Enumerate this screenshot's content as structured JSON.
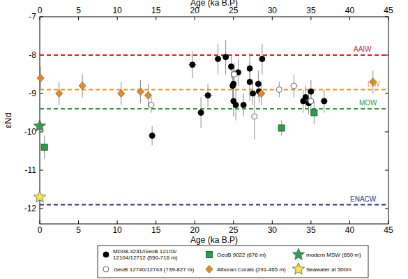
{
  "chart_data": {
    "type": "scatter",
    "xlabel": "Age (ka B.P)",
    "ylabel": "εNd",
    "xlim": [
      0,
      45
    ],
    "ylim": [
      -12.4,
      -7
    ],
    "xticks": [
      0,
      5,
      10,
      15,
      20,
      25,
      30,
      35,
      40,
      45
    ],
    "yticks": [
      -7,
      -8,
      -9,
      -10,
      -11,
      -12
    ],
    "grid": false,
    "legend": "bottom",
    "annotations": [
      {
        "text": "AAIW",
        "y": -8,
        "color": "#c0282d"
      },
      {
        "text": "LIW",
        "y": -8.9,
        "color": "#e6961e"
      },
      {
        "text": "MOW",
        "y": -9.4,
        "color": "#2e9a3a"
      },
      {
        "text": "ENACW",
        "y": -11.9,
        "color": "#2a2f8f"
      }
    ],
    "series": [
      {
        "name": "MD08-3231/GeoB 12103/12104/12712 (550-716 m)",
        "color": "#000000",
        "marker": "circle",
        "x": [
          14.5,
          19.7,
          20.8,
          21.7,
          23.0,
          24.0,
          24.7,
          24.9,
          25.0,
          25.0,
          25.3,
          25.6,
          26.3,
          27.1,
          27.1,
          27.5,
          28.2,
          28.3,
          28.7,
          34.0,
          34.3,
          34.7,
          35.0,
          36.7
        ],
        "values": [
          -10.1,
          -8.25,
          -9.5,
          -9.05,
          -8.1,
          -8.05,
          -8.3,
          -8.8,
          -8.75,
          -9.2,
          -9.3,
          -8.45,
          -9.3,
          -8.35,
          -8.7,
          -9.0,
          -8.75,
          -8.95,
          -8.1,
          -9.2,
          -9.1,
          -9.25,
          -8.95,
          -9.2
        ],
        "errors": [
          0.25,
          0.35,
          0.4,
          0.3,
          0.4,
          0.45,
          0.3,
          0.4,
          0.4,
          0.4,
          0.4,
          0.35,
          0.3,
          0.4,
          0.5,
          0.3,
          0.35,
          0.3,
          0.4,
          0.3,
          0.3,
          0.3,
          0.3,
          0.3
        ],
        "x_errors": [
          0.3,
          0.5,
          0.4,
          0.6,
          0,
          0.4,
          0.3,
          0.3,
          0,
          0.3,
          0.4,
          0,
          0.3,
          0.3,
          0,
          0.3,
          0.4,
          0.3,
          0,
          0.3,
          0,
          0.3,
          0.4,
          0.5
        ]
      },
      {
        "name": "GeoB 12740/12743 (739-827 m)",
        "color": "#ffffff",
        "marker": "circle_open",
        "x": [
          14.4,
          25.1,
          27.7,
          30.9,
          32.8,
          35.0
        ],
        "values": [
          -9.3,
          -8.5,
          -9.6,
          -8.9,
          -8.8,
          -9.2
        ],
        "errors": [
          0.2,
          0.3,
          0.6,
          0.2,
          0.3,
          0.3
        ],
        "x_errors": [
          0.3,
          0.3,
          0.4,
          0.4,
          0.5,
          0.3
        ]
      },
      {
        "name": "GeoB 9022 (676 m)",
        "color": "#2e9a4e",
        "marker": "square",
        "x": [
          0.6,
          31.2,
          35.4
        ],
        "values": [
          -10.4,
          -9.9,
          -9.5
        ],
        "errors": [
          0.3,
          0.2,
          0.3
        ]
      },
      {
        "name": "Alboran Corals (291-465 m)",
        "color": "#e08a2c",
        "marker": "diamond",
        "x": [
          0.1,
          2.5,
          5.5,
          10.5,
          13.0,
          14.0,
          28.6,
          43.0
        ],
        "values": [
          -8.6,
          -9.0,
          -8.8,
          -9.0,
          -8.95,
          -9.05,
          -9.0,
          -8.7
        ],
        "errors": [
          0.3,
          0.3,
          0.3,
          0.3,
          0.3,
          0.3,
          0.3,
          0.3
        ]
      },
      {
        "name": "modern MSW (650 m)",
        "color": "#2e9e4f",
        "marker": "star",
        "x": [
          0
        ],
        "values": [
          -9.85
        ]
      },
      {
        "name": "Seawater at 500m",
        "color": "#f7e64a",
        "marker": "star",
        "x": [
          0
        ],
        "values": [
          -11.7
        ]
      }
    ]
  }
}
